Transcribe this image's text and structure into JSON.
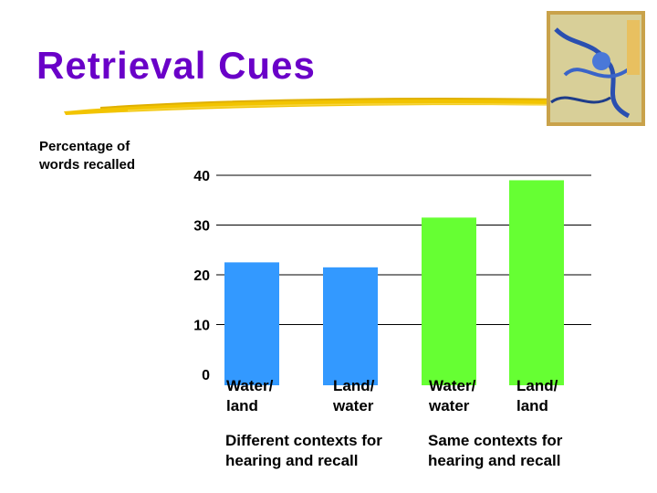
{
  "slide": {
    "title": "Retrieval Cues",
    "title_color": "#6a00c8",
    "accent_color": "#f2c400",
    "thumbnail_icon": "book-cover-thumbnail"
  },
  "chart_data": {
    "type": "bar",
    "ylabel": "Percentage of\nwords recalled",
    "xlabel": "",
    "ylim": [
      0,
      40
    ],
    "yticks": [
      0,
      10,
      20,
      30,
      40
    ],
    "grid": true,
    "categories": [
      "Water/\nland",
      "Land/\nwater",
      "Water/\nwater",
      "Land/\nland"
    ],
    "values": [
      22.5,
      21.5,
      31.5,
      39
    ],
    "bar_colors": [
      "#3399ff",
      "#3399ff",
      "#66ff33",
      "#66ff33"
    ],
    "groups": [
      {
        "label": "Different contexts for\nhearing and recall",
        "categories": [
          0,
          1
        ]
      },
      {
        "label": "Same contexts for\nhearing and recall",
        "categories": [
          2,
          3
        ]
      }
    ]
  }
}
